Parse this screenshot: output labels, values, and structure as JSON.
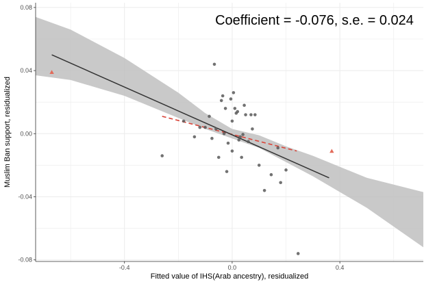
{
  "chart_data": {
    "type": "scatter",
    "xlabel": "Fitted value of IHS(Arab ancestry), residualized",
    "ylabel": "Muslim Ban support, residualized",
    "annotation": "Coefficient = -0.076, s.e. = 0.024",
    "xlim": [
      -0.73,
      0.71
    ],
    "ylim": [
      -0.081,
      0.083
    ],
    "x_ticks": [
      -0.4,
      0.0,
      0.4
    ],
    "x_tick_labels": [
      "-0.4",
      "0.0",
      "0.4"
    ],
    "y_ticks": [
      -0.08,
      -0.04,
      0.0,
      0.04,
      0.08
    ],
    "y_tick_labels": [
      "-0.08",
      "-0.04",
      "0.00",
      "0.04",
      "0.08"
    ],
    "grid": true,
    "colors": {
      "points": "#595959",
      "fit_line": "#333333",
      "ci_band": "#bfbfbf",
      "dashed_line": "#d9473c",
      "triangles": "#e36b5a",
      "grid": "#ebebeb"
    },
    "points": [
      [
        -0.066,
        0.044
      ],
      [
        -0.26,
        -0.014
      ],
      [
        -0.18,
        0.008
      ],
      [
        -0.14,
        -0.002
      ],
      [
        -0.12,
        0.004
      ],
      [
        -0.1,
        0.004
      ],
      [
        -0.085,
        0.011
      ],
      [
        -0.075,
        -0.003
      ],
      [
        -0.06,
        0.003
      ],
      [
        -0.05,
        -0.015
      ],
      [
        -0.04,
        0.021
      ],
      [
        -0.035,
        0.024
      ],
      [
        -0.03,
        0.0
      ],
      [
        -0.025,
        0.016
      ],
      [
        -0.02,
        -0.024
      ],
      [
        -0.015,
        -0.006
      ],
      [
        -0.005,
        0.022
      ],
      [
        0.0,
        0.008
      ],
      [
        0.0,
        -0.011
      ],
      [
        0.005,
        0.026
      ],
      [
        0.01,
        0.016
      ],
      [
        0.015,
        0.013
      ],
      [
        0.02,
        0.014
      ],
      [
        0.025,
        -0.004
      ],
      [
        0.03,
        -0.002
      ],
      [
        0.035,
        -0.015
      ],
      [
        0.04,
        -0.0005
      ],
      [
        0.045,
        0.018
      ],
      [
        0.05,
        0.012
      ],
      [
        0.06,
        -0.005
      ],
      [
        0.07,
        0.012
      ],
      [
        0.075,
        0.003
      ],
      [
        0.085,
        0.012
      ],
      [
        0.1,
        -0.02
      ],
      [
        0.12,
        -0.036
      ],
      [
        0.145,
        -0.026
      ],
      [
        0.17,
        -0.009
      ],
      [
        0.18,
        -0.031
      ],
      [
        0.2,
        -0.023
      ],
      [
        0.245,
        -0.076
      ]
    ],
    "triangles": [
      [
        -0.67,
        0.039
      ],
      [
        0.37,
        -0.011
      ]
    ],
    "fit_line": {
      "x": [
        -0.67,
        0.36
      ],
      "y": [
        0.05,
        -0.028
      ]
    },
    "ci_band": {
      "x": [
        -0.73,
        -0.6,
        -0.4,
        -0.2,
        -0.1,
        0.0,
        0.1,
        0.2,
        0.3,
        0.4,
        0.5,
        0.71
      ],
      "lower": [
        0.037,
        0.034,
        0.024,
        0.01,
        0.003,
        -0.003,
        -0.009,
        -0.018,
        -0.027,
        -0.037,
        -0.047,
        -0.072
      ],
      "upper": [
        0.074,
        0.066,
        0.048,
        0.026,
        0.013,
        0.003,
        -0.001,
        -0.008,
        -0.014,
        -0.021,
        -0.028,
        -0.037
      ]
    },
    "dashed_line": {
      "x": [
        -0.26,
        0.24
      ],
      "y": [
        0.011,
        -0.011
      ]
    }
  }
}
